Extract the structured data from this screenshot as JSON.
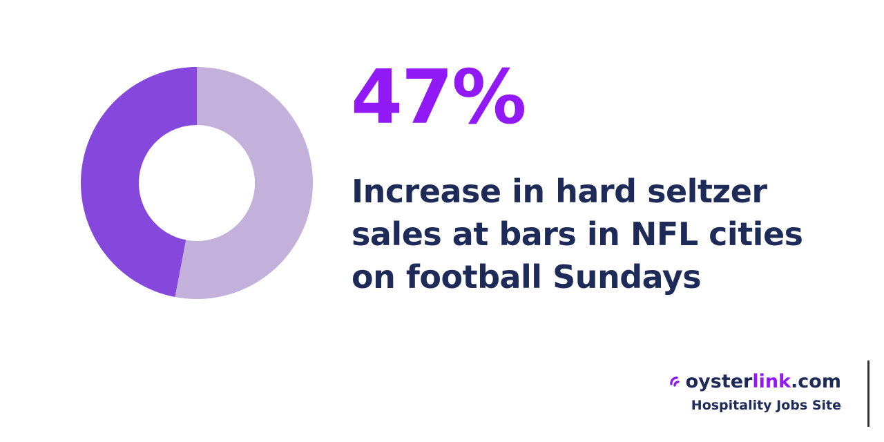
{
  "chart_data": {
    "type": "pie",
    "style": "donut",
    "slices": [
      {
        "value": 47,
        "color": "#8547dc"
      },
      {
        "value": 53,
        "color": "#c3b1db"
      }
    ]
  },
  "headline": {
    "value": "47%",
    "color": "#9019f5"
  },
  "caption": {
    "lines": [
      "Increase in hard seltzer",
      "sales at bars in NFL cities",
      "on football Sundays"
    ],
    "color": "#1e2b58"
  },
  "brand": {
    "name_part1": "oyster",
    "name_part2": "link",
    "name_part3": ".com",
    "tagline": "Hospitality Jobs Site",
    "dark_color": "#1e2b58",
    "accent_color": "#9019f5"
  },
  "edge_line_color": "#333333"
}
